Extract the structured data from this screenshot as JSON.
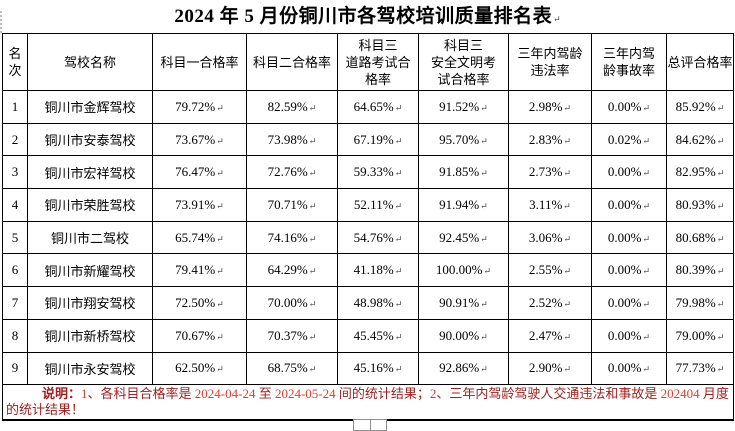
{
  "title": {
    "text": "2024 年 5 月份铜川市各驾校培训质量排名表"
  },
  "marks": {
    "pilcrow": "↵"
  },
  "table": {
    "headers": [
      "名\n次",
      "驾校名称",
      "科目一合格率",
      "科目二合格率",
      "科目三\n道路考试合\n格率",
      "科目三\n安全文明考\n试合格率",
      "三年内驾龄\n违法率",
      "三年内驾\n龄事故率",
      "总评合格率"
    ],
    "rows": [
      [
        "1",
        "铜川市金辉驾校",
        "79.72%",
        "82.59%",
        "64.65%",
        "91.52%",
        "2.98%",
        "0.00%",
        "85.92%"
      ],
      [
        "2",
        "铜川市安泰驾校",
        "73.67%",
        "73.98%",
        "67.19%",
        "95.70%",
        "2.83%",
        "0.02%",
        "84.62%"
      ],
      [
        "3",
        "铜川市宏祥驾校",
        "76.47%",
        "72.76%",
        "59.33%",
        "91.85%",
        "2.73%",
        "0.00%",
        "82.95%"
      ],
      [
        "4",
        "铜川市荣胜驾校",
        "73.91%",
        "70.71%",
        "52.11%",
        "91.94%",
        "3.11%",
        "0.00%",
        "80.93%"
      ],
      [
        "5",
        "铜川市二驾校",
        "65.74%",
        "74.16%",
        "54.76%",
        "92.45%",
        "3.06%",
        "0.00%",
        "80.68%"
      ],
      [
        "6",
        "铜川市新耀驾校",
        "79.41%",
        "64.29%",
        "41.18%",
        "100.00%",
        "2.55%",
        "0.00%",
        "80.39%"
      ],
      [
        "7",
        "铜川市翔安驾校",
        "72.50%",
        "70.00%",
        "48.98%",
        "90.91%",
        "2.52%",
        "0.00%",
        "79.98%"
      ],
      [
        "8",
        "铜川市新桥驾校",
        "70.67%",
        "70.37%",
        "45.45%",
        "90.00%",
        "2.47%",
        "0.00%",
        "79.00%"
      ],
      [
        "9",
        "铜川市永安驾校",
        "62.50%",
        "68.75%",
        "45.16%",
        "92.86%",
        "2.90%",
        "0.00%",
        "77.73%"
      ]
    ]
  },
  "note": {
    "segments": [
      {
        "text": "说明：",
        "style": "label"
      },
      {
        "text": "1",
        "style": "num"
      },
      {
        "text": "、各科目合格率是 ",
        "style": "cjk"
      },
      {
        "text": "2024-04-24",
        "style": "num"
      },
      {
        "text": " 至 ",
        "style": "cjk"
      },
      {
        "text": "2024-05-24",
        "style": "num"
      },
      {
        "text": " 间的统计结果；",
        "style": "cjk"
      },
      {
        "text": "2",
        "style": "num"
      },
      {
        "text": "、三年内驾龄驾驶人交通违法和事故是 ",
        "style": "cjk"
      },
      {
        "text": "202404",
        "style": "num"
      },
      {
        "text": " 月度的统计结果！",
        "style": "cjk"
      }
    ]
  },
  "colors": {
    "border": "#000000",
    "note_text": "#a61c1c",
    "note_highlight": "#e8392b"
  }
}
